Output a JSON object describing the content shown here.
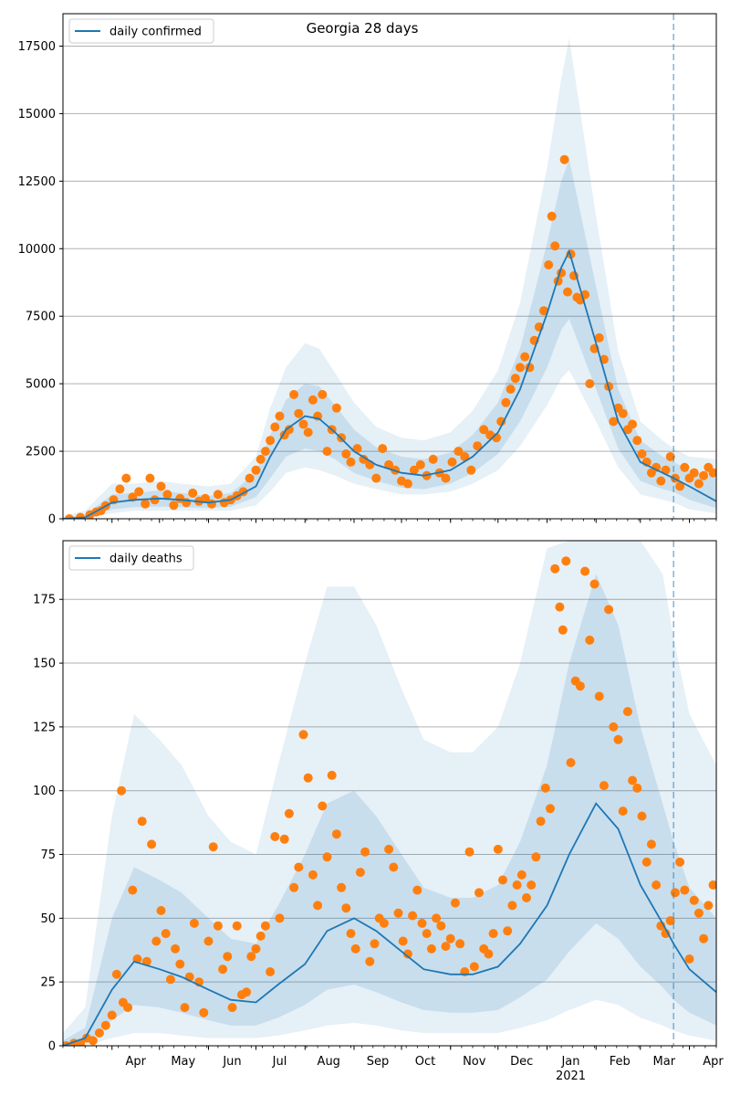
{
  "colors": {
    "model_line": "#1f77b4",
    "observed_points": "#ff7f0e",
    "band": "#1f77b4",
    "grid": "#b0b0b0",
    "forecast_marker": "#1f77b4"
  },
  "x_axis": {
    "month_ticks": [
      {
        "date": "2020-04-01",
        "label": "Apr"
      },
      {
        "date": "2020-05-01",
        "label": "May"
      },
      {
        "date": "2020-06-01",
        "label": "Jun"
      },
      {
        "date": "2020-07-01",
        "label": "Jul"
      },
      {
        "date": "2020-08-01",
        "label": "Aug"
      },
      {
        "date": "2020-09-01",
        "label": "Sep"
      },
      {
        "date": "2020-10-01",
        "label": "Oct"
      },
      {
        "date": "2020-11-01",
        "label": "Nov"
      },
      {
        "date": "2020-12-01",
        "label": "Dec"
      },
      {
        "date": "2021-01-01",
        "label": "Jan"
      },
      {
        "date": "2021-02-01",
        "label": "Feb"
      },
      {
        "date": "2021-03-01",
        "label": "Mar"
      },
      {
        "date": "2021-04-01",
        "label": "Apr"
      }
    ],
    "year_label": {
      "date": "2021-01-01",
      "label": "2021"
    }
  },
  "chart_data": [
    {
      "type": "line",
      "title": "Georgia 28 days",
      "legend": {
        "label": "daily confirmed",
        "position": "top-left"
      },
      "xlim": [
        "2020-03-01",
        "2021-04-18"
      ],
      "ylim": [
        0,
        18700
      ],
      "yticks": [
        0,
        2500,
        5000,
        7500,
        10000,
        12500,
        15000,
        17500
      ],
      "grid": "horizontal",
      "forecast_start": "2021-03-22",
      "model": {
        "dates": [
          "2020-03-01",
          "2020-03-15",
          "2020-04-01",
          "2020-04-15",
          "2020-05-01",
          "2020-05-15",
          "2020-06-01",
          "2020-06-15",
          "2020-07-01",
          "2020-07-10",
          "2020-07-20",
          "2020-08-01",
          "2020-08-10",
          "2020-08-20",
          "2020-09-01",
          "2020-09-15",
          "2020-10-01",
          "2020-10-15",
          "2020-11-01",
          "2020-11-15",
          "2020-12-01",
          "2020-12-15",
          "2021-01-01",
          "2021-01-10",
          "2021-01-15",
          "2021-02-01",
          "2021-02-15",
          "2021-03-01",
          "2021-03-15",
          "2021-03-22",
          "2021-04-01",
          "2021-04-18"
        ],
        "values": [
          0,
          50,
          600,
          700,
          750,
          700,
          600,
          700,
          1200,
          2300,
          3300,
          3800,
          3700,
          3200,
          2500,
          2000,
          1700,
          1600,
          1800,
          2300,
          3200,
          4800,
          7600,
          9300,
          9900,
          6500,
          3600,
          2100,
          1700,
          1500,
          1200,
          650
        ],
        "bands": [
          {
            "lower": [
              0,
              0,
              200,
              300,
              300,
              300,
              300,
              300,
              500,
              1000,
              1700,
              1900,
              1800,
              1600,
              1300,
              1100,
              900,
              900,
              1000,
              1300,
              1800,
              2700,
              4200,
              5200,
              5500,
              3600,
              1900,
              900,
              700,
              600,
              350,
              200
            ],
            "upper": [
              80,
              300,
              1300,
              1300,
              1400,
              1300,
              1200,
              1300,
              2300,
              4100,
              5600,
              6500,
              6300,
              5400,
              4300,
              3400,
              3000,
              2900,
              3200,
              4000,
              5500,
              8000,
              13000,
              16300,
              17800,
              11200,
              6200,
              3600,
              2900,
              2600,
              2300,
              2200
            ]
          },
          {
            "lower": [
              0,
              20,
              350,
              430,
              450,
              430,
              400,
              450,
              800,
              1500,
              2300,
              2600,
              2500,
              2200,
              1700,
              1400,
              1150,
              1100,
              1300,
              1700,
              2400,
              3600,
              5600,
              7000,
              7400,
              4800,
              2600,
              1400,
              1100,
              1000,
              700,
              400
            ],
            "upper": [
              40,
              150,
              900,
              950,
              1050,
              950,
              850,
              950,
              1700,
              3100,
              4400,
              5000,
              4900,
              4200,
              3300,
              2650,
              2300,
              2200,
              2450,
              3100,
              4300,
              6300,
              10200,
              12500,
              13300,
              8600,
              4800,
              2900,
              2300,
              2100,
              1800,
              1500
            ]
          }
        ]
      },
      "observed": {
        "dates": [
          "2020-03-05",
          "2020-03-12",
          "2020-03-18",
          "2020-03-22",
          "2020-03-25",
          "2020-03-28",
          "2020-04-02",
          "2020-04-06",
          "2020-04-10",
          "2020-04-14",
          "2020-04-18",
          "2020-04-22",
          "2020-04-25",
          "2020-04-28",
          "2020-05-02",
          "2020-05-06",
          "2020-05-10",
          "2020-05-14",
          "2020-05-18",
          "2020-05-22",
          "2020-05-26",
          "2020-05-30",
          "2020-06-03",
          "2020-06-07",
          "2020-06-11",
          "2020-06-15",
          "2020-06-19",
          "2020-06-23",
          "2020-06-27",
          "2020-07-01",
          "2020-07-04",
          "2020-07-07",
          "2020-07-10",
          "2020-07-13",
          "2020-07-16",
          "2020-07-19",
          "2020-07-22",
          "2020-07-25",
          "2020-07-28",
          "2020-07-31",
          "2020-08-03",
          "2020-08-06",
          "2020-08-09",
          "2020-08-12",
          "2020-08-15",
          "2020-08-18",
          "2020-08-21",
          "2020-08-24",
          "2020-08-27",
          "2020-08-30",
          "2020-09-03",
          "2020-09-07",
          "2020-09-11",
          "2020-09-15",
          "2020-09-19",
          "2020-09-23",
          "2020-09-27",
          "2020-10-01",
          "2020-10-05",
          "2020-10-09",
          "2020-10-13",
          "2020-10-17",
          "2020-10-21",
          "2020-10-25",
          "2020-10-29",
          "2020-11-02",
          "2020-11-06",
          "2020-11-10",
          "2020-11-14",
          "2020-11-18",
          "2020-11-22",
          "2020-11-26",
          "2020-11-30",
          "2020-12-03",
          "2020-12-06",
          "2020-12-09",
          "2020-12-12",
          "2020-12-15",
          "2020-12-18",
          "2020-12-21",
          "2020-12-24",
          "2020-12-27",
          "2020-12-30",
          "2021-01-02",
          "2021-01-04",
          "2021-01-06",
          "2021-01-08",
          "2021-01-10",
          "2021-01-12",
          "2021-01-14",
          "2021-01-16",
          "2021-01-18",
          "2021-01-20",
          "2021-01-22",
          "2021-01-25",
          "2021-01-28",
          "2021-01-31",
          "2021-02-03",
          "2021-02-06",
          "2021-02-09",
          "2021-02-12",
          "2021-02-15",
          "2021-02-18",
          "2021-02-21",
          "2021-02-24",
          "2021-02-27",
          "2021-03-02",
          "2021-03-05",
          "2021-03-08",
          "2021-03-11",
          "2021-03-14",
          "2021-03-17",
          "2021-03-20",
          "2021-03-23",
          "2021-03-26",
          "2021-03-29",
          "2021-04-01",
          "2021-04-04",
          "2021-04-07",
          "2021-04-10",
          "2021-04-13",
          "2021-04-16"
        ],
        "values": [
          0,
          50,
          150,
          250,
          300,
          480,
          700,
          1100,
          1500,
          800,
          1000,
          550,
          1500,
          700,
          1200,
          900,
          500,
          750,
          600,
          950,
          650,
          750,
          550,
          900,
          600,
          700,
          850,
          1000,
          1500,
          1800,
          2200,
          2500,
          2900,
          3400,
          3800,
          3100,
          3300,
          4600,
          3900,
          3500,
          3200,
          4400,
          3800,
          4600,
          2500,
          3300,
          4100,
          3000,
          2400,
          2100,
          2600,
          2200,
          2000,
          1500,
          2600,
          2000,
          1800,
          1400,
          1300,
          1800,
          2000,
          1600,
          2200,
          1700,
          1500,
          2100,
          2500,
          2300,
          1800,
          2700,
          3300,
          3100,
          3000,
          3600,
          4300,
          4800,
          5200,
          5600,
          6000,
          5600,
          6600,
          7100,
          7700,
          9400,
          11200,
          10100,
          8800,
          9100,
          13300,
          8400,
          9800,
          9000,
          8200,
          8100,
          8300,
          5000,
          6300,
          6700,
          5900,
          4900,
          3600,
          4100,
          3900,
          3300,
          3500,
          2900,
          2400,
          2100,
          1700,
          1900,
          1400,
          1800,
          2300,
          1500,
          1200,
          1900,
          1500,
          1700,
          1300,
          1600,
          1900,
          1700
        ]
      }
    },
    {
      "type": "line",
      "title": "",
      "legend": {
        "label": "daily deaths",
        "position": "top-left"
      },
      "xlim": [
        "2020-03-01",
        "2021-04-18"
      ],
      "ylim": [
        0,
        198
      ],
      "yticks": [
        0,
        25,
        50,
        75,
        100,
        125,
        150,
        175
      ],
      "grid": "horizontal",
      "forecast_start": "2021-03-22",
      "model": {
        "dates": [
          "2020-03-01",
          "2020-03-15",
          "2020-04-01",
          "2020-04-15",
          "2020-05-01",
          "2020-05-15",
          "2020-06-01",
          "2020-06-15",
          "2020-07-01",
          "2020-07-15",
          "2020-08-01",
          "2020-08-15",
          "2020-09-01",
          "2020-09-15",
          "2020-10-01",
          "2020-10-15",
          "2020-11-01",
          "2020-11-15",
          "2020-12-01",
          "2020-12-15",
          "2021-01-01",
          "2021-01-15",
          "2021-02-01",
          "2021-02-15",
          "2021-03-01",
          "2021-03-15",
          "2021-03-22",
          "2021-04-01",
          "2021-04-18"
        ],
        "values": [
          0,
          3,
          22,
          33,
          30,
          27,
          22,
          18,
          17,
          24,
          32,
          45,
          50,
          45,
          37,
          30,
          28,
          28,
          31,
          40,
          55,
          75,
          95,
          85,
          63,
          48,
          40,
          30,
          21
        ],
        "bands": [
          {
            "lower": [
              0,
              0,
              3,
              5,
              5,
              4,
              3,
              3,
              3,
              4,
              6,
              8,
              9,
              8,
              6,
              5,
              5,
              5,
              5,
              7,
              10,
              14,
              18,
              16,
              11,
              8,
              6,
              4,
              2
            ],
            "upper": [
              5,
              15,
              90,
              130,
              120,
              110,
              90,
              80,
              75,
              110,
              150,
              180,
              180,
              165,
              140,
              120,
              115,
              115,
              125,
              150,
              195,
              198,
              198,
              198,
              198,
              185,
              160,
              130,
              110
            ]
          },
          {
            "lower": [
              0,
              1,
              10,
              16,
              15,
              13,
              10,
              8,
              8,
              11,
              16,
              22,
              24,
              21,
              17,
              14,
              13,
              13,
              14,
              19,
              26,
              37,
              48,
              42,
              31,
              23,
              18,
              13,
              8
            ],
            "upper": [
              2,
              7,
              50,
              70,
              65,
              60,
              50,
              42,
              40,
              55,
              75,
              95,
              100,
              90,
              75,
              62,
              58,
              58,
              63,
              80,
              110,
              150,
              185,
              165,
              125,
              95,
              80,
              62,
              50
            ]
          }
        ]
      },
      "observed": {
        "dates": [
          "2020-03-03",
          "2020-03-08",
          "2020-03-12",
          "2020-03-16",
          "2020-03-20",
          "2020-03-24",
          "2020-03-28",
          "2020-04-01",
          "2020-04-04",
          "2020-04-07",
          "2020-04-08",
          "2020-04-11",
          "2020-04-14",
          "2020-04-17",
          "2020-04-20",
          "2020-04-23",
          "2020-04-26",
          "2020-04-29",
          "2020-05-02",
          "2020-05-05",
          "2020-05-08",
          "2020-05-11",
          "2020-05-14",
          "2020-05-17",
          "2020-05-20",
          "2020-05-23",
          "2020-05-26",
          "2020-05-29",
          "2020-06-01",
          "2020-06-04",
          "2020-06-07",
          "2020-06-10",
          "2020-06-13",
          "2020-06-16",
          "2020-06-19",
          "2020-06-22",
          "2020-06-25",
          "2020-06-28",
          "2020-07-01",
          "2020-07-04",
          "2020-07-07",
          "2020-07-10",
          "2020-07-13",
          "2020-07-16",
          "2020-07-19",
          "2020-07-22",
          "2020-07-25",
          "2020-07-28",
          "2020-07-31",
          "2020-08-03",
          "2020-08-06",
          "2020-08-09",
          "2020-08-12",
          "2020-08-15",
          "2020-08-18",
          "2020-08-21",
          "2020-08-24",
          "2020-08-27",
          "2020-08-30",
          "2020-09-02",
          "2020-09-05",
          "2020-09-08",
          "2020-09-11",
          "2020-09-14",
          "2020-09-17",
          "2020-09-20",
          "2020-09-23",
          "2020-09-26",
          "2020-09-29",
          "2020-10-02",
          "2020-10-05",
          "2020-10-08",
          "2020-10-11",
          "2020-10-14",
          "2020-10-17",
          "2020-10-20",
          "2020-10-23",
          "2020-10-26",
          "2020-10-29",
          "2020-11-01",
          "2020-11-04",
          "2020-11-07",
          "2020-11-10",
          "2020-11-13",
          "2020-11-16",
          "2020-11-19",
          "2020-11-22",
          "2020-11-25",
          "2020-11-28",
          "2020-12-01",
          "2020-12-04",
          "2020-12-07",
          "2020-12-10",
          "2020-12-13",
          "2020-12-16",
          "2020-12-19",
          "2020-12-22",
          "2020-12-25",
          "2020-12-28",
          "2020-12-31",
          "2021-01-03",
          "2021-01-06",
          "2021-01-09",
          "2021-01-11",
          "2021-01-13",
          "2021-01-16",
          "2021-01-19",
          "2021-01-22",
          "2021-01-25",
          "2021-01-28",
          "2021-01-31",
          "2021-02-03",
          "2021-02-06",
          "2021-02-09",
          "2021-02-12",
          "2021-02-15",
          "2021-02-18",
          "2021-02-21",
          "2021-02-24",
          "2021-02-27",
          "2021-03-02",
          "2021-03-05",
          "2021-03-08",
          "2021-03-11",
          "2021-03-14",
          "2021-03-17",
          "2021-03-20",
          "2021-03-23",
          "2021-03-26",
          "2021-03-29",
          "2021-04-01",
          "2021-04-04",
          "2021-04-07",
          "2021-04-10",
          "2021-04-13",
          "2021-04-16"
        ],
        "values": [
          0,
          1,
          1,
          3,
          2,
          5,
          8,
          12,
          28,
          100,
          17,
          15,
          61,
          34,
          88,
          33,
          79,
          41,
          53,
          44,
          26,
          38,
          32,
          15,
          27,
          48,
          25,
          13,
          41,
          78,
          47,
          30,
          35,
          15,
          47,
          20,
          21,
          35,
          38,
          43,
          47,
          29,
          82,
          50,
          81,
          91,
          62,
          70,
          122,
          105,
          67,
          55,
          94,
          74,
          106,
          83,
          62,
          54,
          44,
          38,
          68,
          76,
          33,
          40,
          50,
          48,
          77,
          70,
          52,
          41,
          36,
          51,
          61,
          48,
          44,
          38,
          50,
          47,
          39,
          42,
          56,
          40,
          29,
          76,
          31,
          60,
          38,
          36,
          44,
          77,
          65,
          45,
          55,
          63,
          67,
          58,
          63,
          74,
          88,
          101,
          93,
          187,
          172,
          163,
          190,
          111,
          143,
          141,
          186,
          159,
          181,
          137,
          102,
          171,
          125,
          120,
          92,
          131,
          104,
          101,
          90,
          72,
          79,
          63,
          47,
          44,
          49,
          60,
          72,
          61,
          34,
          57,
          52,
          42,
          55,
          63
        ]
      }
    }
  ]
}
